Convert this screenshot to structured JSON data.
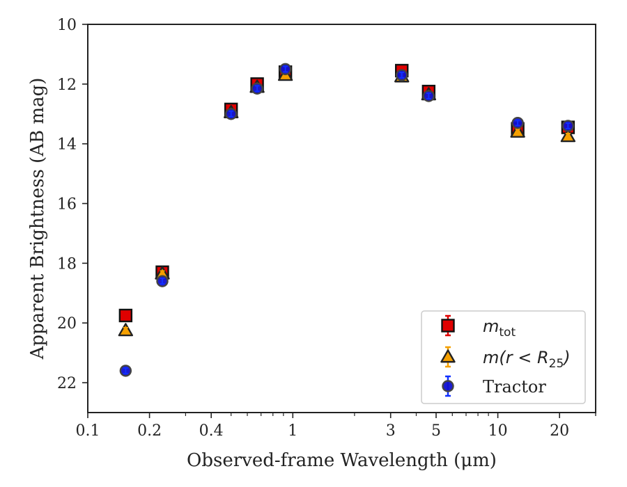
{
  "chart_data": {
    "type": "scatter",
    "xlabel": "Observed-frame Wavelength (μm)",
    "ylabel": "Apparent Brightness (AB mag)",
    "xscale": "log",
    "xlim": [
      0.1,
      30
    ],
    "ylim": [
      23,
      10
    ],
    "y_inverted": true,
    "x_ticks": [
      0.1,
      0.2,
      0.4,
      1,
      3,
      5,
      10,
      20
    ],
    "x_tick_labels": [
      "0.1",
      "0.2",
      "0.4",
      "1",
      "3",
      "5",
      "10",
      "20"
    ],
    "y_ticks": [
      10,
      12,
      14,
      16,
      18,
      20,
      22
    ],
    "y_tick_labels": [
      "10",
      "12",
      "14",
      "16",
      "18",
      "20",
      "22"
    ],
    "grid": false,
    "legend_position": "bottom-right",
    "series": [
      {
        "name": "m_tot",
        "legend_label": "m",
        "legend_subscript": "tot",
        "marker": "square",
        "face_color": "#e00000",
        "errorbar_color": "#e00000",
        "x": [
          0.153,
          0.231,
          0.5,
          0.67,
          0.92,
          3.4,
          4.6,
          12.5,
          22.0
        ],
        "y": [
          19.75,
          18.3,
          12.85,
          12.0,
          11.6,
          11.55,
          12.25,
          13.5,
          13.45
        ]
      },
      {
        "name": "m(r<R25)",
        "legend_label": "m(r < R",
        "legend_subscript": "25",
        "legend_suffix": ")",
        "marker": "triangle",
        "face_color": "#f5a000",
        "errorbar_color": "#f5a000",
        "x": [
          0.153,
          0.231,
          0.5,
          0.67,
          0.92,
          3.4,
          4.6,
          12.5,
          22.0
        ],
        "y": [
          20.25,
          18.35,
          12.95,
          12.1,
          11.7,
          11.75,
          12.35,
          13.6,
          13.75
        ]
      },
      {
        "name": "Tractor",
        "legend_label": "Tractor",
        "marker": "circle",
        "face_color": "#1010d0",
        "errorbar_color": "#1030ff",
        "x": [
          0.153,
          0.231,
          0.5,
          0.67,
          0.92,
          3.4,
          4.6,
          12.5,
          22.0
        ],
        "y": [
          21.6,
          18.6,
          13.0,
          12.15,
          11.5,
          11.7,
          12.4,
          13.3,
          13.4
        ]
      }
    ]
  }
}
